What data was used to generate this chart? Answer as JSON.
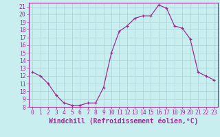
{
  "x": [
    0,
    1,
    2,
    3,
    4,
    5,
    6,
    7,
    8,
    9,
    10,
    11,
    12,
    13,
    14,
    15,
    16,
    17,
    18,
    19,
    20,
    21,
    22,
    23
  ],
  "y": [
    12.5,
    12.0,
    11.0,
    9.5,
    8.5,
    8.2,
    8.2,
    8.5,
    8.5,
    10.5,
    15.0,
    17.8,
    18.5,
    19.5,
    19.8,
    19.8,
    21.2,
    20.8,
    18.5,
    18.2,
    16.8,
    12.5,
    12.0,
    11.5
  ],
  "line_color": "#9b2d8e",
  "marker": "+",
  "marker_size": 3.5,
  "bg_color": "#c8eef0",
  "grid_color": "#b0d8dc",
  "xlabel": "Windchill (Refroidissement éolien,°C)",
  "ylabel": "",
  "title": "",
  "xlim": [
    -0.5,
    23.5
  ],
  "ylim": [
    8,
    21.5
  ],
  "yticks": [
    8,
    9,
    10,
    11,
    12,
    13,
    14,
    15,
    16,
    17,
    18,
    19,
    20,
    21
  ],
  "xticks": [
    0,
    1,
    2,
    3,
    4,
    5,
    6,
    7,
    8,
    9,
    10,
    11,
    12,
    13,
    14,
    15,
    16,
    17,
    18,
    19,
    20,
    21,
    22,
    23
  ],
  "tick_label_fontsize": 5.8,
  "xlabel_fontsize": 7.0,
  "spine_color": "#9b2d8e",
  "axis_bg": "#c8eef0"
}
